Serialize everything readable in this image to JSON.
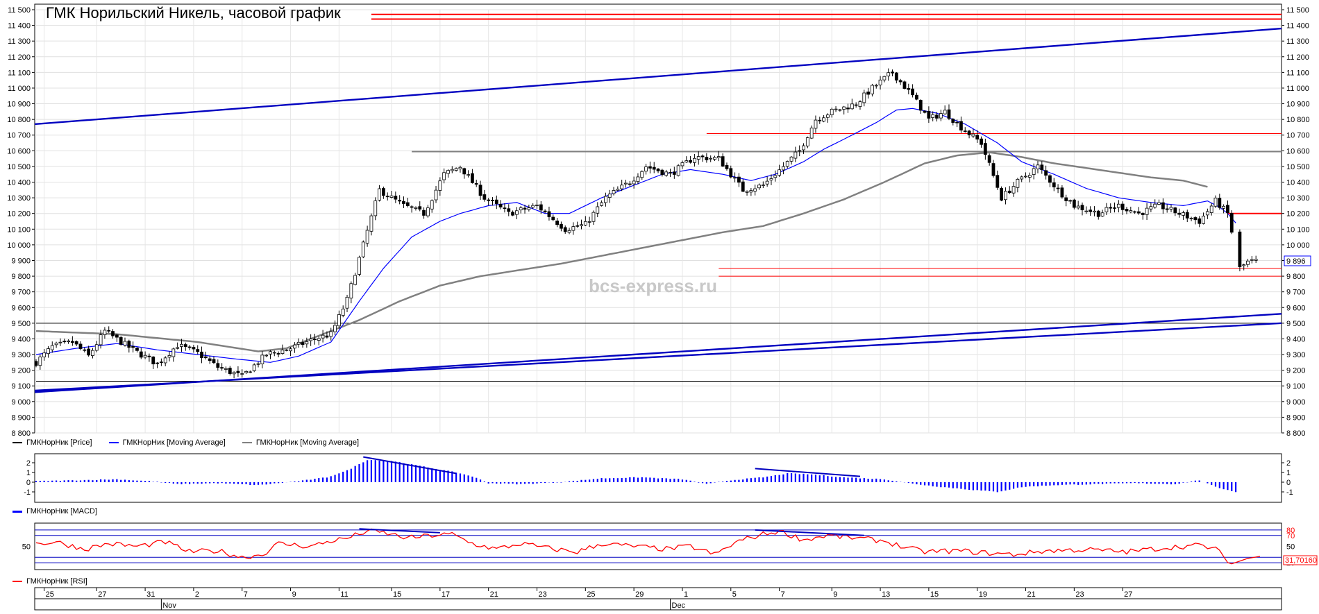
{
  "title": "ГМК Норильский Никель, часовой график",
  "watermark": "bcs-express.ru",
  "colors": {
    "price": "#000000",
    "ma_fast": "#0000ff",
    "ma_slow": "#808080",
    "level": "#ff0000",
    "trend": "#0000c0",
    "macd": "#0000ff",
    "rsi": "#ff0000"
  },
  "legend": {
    "price": "ГМКНорНик [Price]",
    "ma_fast": "ГМКНорНик [Moving Average]",
    "ma_slow": "ГМКНорНик [Moving Average]",
    "macd": "ГМКНорНик [MACD]",
    "rsi": "ГМКНорНик [RSI]"
  },
  "last_price_label": "9 896",
  "rsi_value_label": "31,70160",
  "chart_data": [
    {
      "type": "candlestick",
      "name": "price",
      "ylim": [
        8800,
        11500
      ],
      "yticks": [
        "11 500",
        "11 400",
        "11 300",
        "11 200",
        "11 100",
        "11 000",
        "10 900",
        "10 800",
        "10 700",
        "10 600",
        "10 500",
        "10 400",
        "10 300",
        "10 200",
        "10 100",
        "10 000",
        "9 900",
        "9 800",
        "9 700",
        "9 600",
        "9 500",
        "9 400",
        "9 300",
        "9 200",
        "9 100",
        "9 000",
        "8 900",
        "8 800"
      ],
      "price_anchors": [
        [
          0,
          9250
        ],
        [
          4,
          9350
        ],
        [
          9,
          9380
        ],
        [
          13,
          9290
        ],
        [
          17,
          9450
        ],
        [
          24,
          9330
        ],
        [
          30,
          9240
        ],
        [
          35,
          9360
        ],
        [
          40,
          9310
        ],
        [
          45,
          9220
        ],
        [
          51,
          9160
        ],
        [
          57,
          9300
        ],
        [
          63,
          9340
        ],
        [
          69,
          9400
        ],
        [
          73,
          9430
        ],
        [
          77,
          9650
        ],
        [
          81,
          10000
        ],
        [
          85,
          10350
        ],
        [
          91,
          10250
        ],
        [
          96,
          10200
        ],
        [
          101,
          10450
        ],
        [
          105,
          10500
        ],
        [
          111,
          10300
        ],
        [
          117,
          10200
        ],
        [
          124,
          10250
        ],
        [
          131,
          10100
        ],
        [
          136,
          10130
        ],
        [
          141,
          10300
        ],
        [
          147,
          10400
        ],
        [
          151,
          10500
        ],
        [
          157,
          10450
        ],
        [
          163,
          10560
        ],
        [
          169,
          10550
        ],
        [
          175,
          10350
        ],
        [
          180,
          10380
        ],
        [
          185,
          10500
        ],
        [
          189,
          10600
        ],
        [
          193,
          10800
        ],
        [
          197,
          10850
        ],
        [
          203,
          10900
        ],
        [
          207,
          11000
        ],
        [
          212,
          11100
        ],
        [
          217,
          10950
        ],
        [
          221,
          10800
        ],
        [
          225,
          10850
        ],
        [
          229,
          10750
        ],
        [
          234,
          10650
        ],
        [
          239,
          10300
        ],
        [
          243,
          10400
        ],
        [
          248,
          10500
        ],
        [
          253,
          10350
        ],
        [
          257,
          10250
        ],
        [
          263,
          10200
        ],
        [
          268,
          10250
        ],
        [
          273,
          10200
        ],
        [
          278,
          10250
        ],
        [
          283,
          10200
        ],
        [
          288,
          10150
        ],
        [
          292,
          10280
        ],
        [
          295,
          10200
        ],
        [
          298,
          9850
        ],
        [
          300,
          9890
        ],
        [
          302,
          9896
        ]
      ],
      "ma_fast_anchors": [
        [
          0,
          9300
        ],
        [
          10,
          9340
        ],
        [
          20,
          9370
        ],
        [
          30,
          9330
        ],
        [
          40,
          9300
        ],
        [
          50,
          9270
        ],
        [
          58,
          9250
        ],
        [
          65,
          9290
        ],
        [
          73,
          9380
        ],
        [
          80,
          9640
        ],
        [
          86,
          9850
        ],
        [
          93,
          10050
        ],
        [
          100,
          10150
        ],
        [
          105,
          10200
        ],
        [
          112,
          10250
        ],
        [
          119,
          10270
        ],
        [
          126,
          10200
        ],
        [
          132,
          10200
        ],
        [
          140,
          10300
        ],
        [
          148,
          10380
        ],
        [
          155,
          10450
        ],
        [
          162,
          10480
        ],
        [
          170,
          10450
        ],
        [
          177,
          10410
        ],
        [
          183,
          10450
        ],
        [
          190,
          10530
        ],
        [
          195,
          10610
        ],
        [
          202,
          10700
        ],
        [
          208,
          10780
        ],
        [
          213,
          10860
        ],
        [
          217,
          10870
        ],
        [
          223,
          10840
        ],
        [
          230,
          10770
        ],
        [
          238,
          10650
        ],
        [
          244,
          10530
        ],
        [
          252,
          10450
        ],
        [
          260,
          10360
        ],
        [
          268,
          10300
        ],
        [
          276,
          10270
        ],
        [
          284,
          10250
        ],
        [
          290,
          10280
        ],
        [
          293,
          10240
        ],
        [
          295,
          10200
        ],
        [
          297,
          10140
        ]
      ],
      "ma_slow_anchors": [
        [
          0,
          9450
        ],
        [
          20,
          9430
        ],
        [
          40,
          9380
        ],
        [
          55,
          9320
        ],
        [
          62,
          9340
        ],
        [
          70,
          9420
        ],
        [
          80,
          9520
        ],
        [
          90,
          9640
        ],
        [
          100,
          9740
        ],
        [
          110,
          9800
        ],
        [
          120,
          9840
        ],
        [
          130,
          9880
        ],
        [
          140,
          9930
        ],
        [
          150,
          9980
        ],
        [
          160,
          10030
        ],
        [
          170,
          10080
        ],
        [
          180,
          10120
        ],
        [
          190,
          10200
        ],
        [
          200,
          10290
        ],
        [
          210,
          10400
        ],
        [
          220,
          10520
        ],
        [
          228,
          10570
        ],
        [
          236,
          10590
        ],
        [
          244,
          10560
        ],
        [
          252,
          10520
        ],
        [
          260,
          10490
        ],
        [
          268,
          10460
        ],
        [
          276,
          10430
        ],
        [
          284,
          10410
        ],
        [
          290,
          10370
        ]
      ],
      "levels": [
        {
          "y": 11470,
          "x0": 83,
          "x1": 303,
          "color": "#ff0000",
          "width": 2
        },
        {
          "y": 11440,
          "x0": 83,
          "x1": 303,
          "color": "#ff0000",
          "width": 2
        },
        {
          "y": 10710,
          "x0": 166,
          "x1": 303,
          "color": "#ff0000",
          "width": 1
        },
        {
          "y": 10200,
          "x0": 295,
          "x1": 303,
          "color": "#ff0000",
          "width": 2
        },
        {
          "y": 9850,
          "x0": 169,
          "x1": 303,
          "color": "#ff0000",
          "width": 1
        },
        {
          "y": 9800,
          "x0": 169,
          "x1": 303,
          "color": "#ff0000",
          "width": 1
        },
        {
          "y": 10595,
          "x0": 93,
          "x1": 303,
          "color": "#808080",
          "width": 2
        },
        {
          "y": 9500,
          "x0": 0,
          "x1": 303,
          "color": "#000000",
          "width": 1
        },
        {
          "y": 9130,
          "x0": 0,
          "x1": 303,
          "color": "#000000",
          "width": 1
        }
      ],
      "trendlines": [
        {
          "x0": 0,
          "y0": 10770,
          "x1": 303,
          "y1": 11380
        },
        {
          "x0": 0,
          "y0": 9070,
          "x1": 303,
          "y1": 9500
        },
        {
          "x0": 0,
          "y0": 9060,
          "x1": 303,
          "y1": 9560
        }
      ]
    },
    {
      "type": "bar",
      "name": "MACD",
      "ylim": [
        -1.5,
        2.5
      ],
      "yticks": [
        "2",
        "1",
        "0",
        "-1"
      ],
      "macd_anchors": [
        [
          0,
          0.1
        ],
        [
          10,
          0.2
        ],
        [
          20,
          0.3
        ],
        [
          28,
          0.1
        ],
        [
          35,
          -0.2
        ],
        [
          45,
          -0.1
        ],
        [
          55,
          -0.3
        ],
        [
          65,
          0.1
        ],
        [
          72,
          0.5
        ],
        [
          77,
          1.2
        ],
        [
          82,
          2.3
        ],
        [
          88,
          2.2
        ],
        [
          96,
          1.6
        ],
        [
          104,
          1.0
        ],
        [
          108,
          0.6
        ],
        [
          112,
          -0.1
        ],
        [
          120,
          -0.2
        ],
        [
          130,
          0.0
        ],
        [
          140,
          0.4
        ],
        [
          150,
          0.5
        ],
        [
          160,
          0.3
        ],
        [
          166,
          -0.2
        ],
        [
          172,
          0.2
        ],
        [
          180,
          0.5
        ],
        [
          186,
          0.9
        ],
        [
          192,
          0.8
        ],
        [
          200,
          0.5
        ],
        [
          210,
          0.3
        ],
        [
          216,
          -0.1
        ],
        [
          222,
          -0.4
        ],
        [
          232,
          -0.8
        ],
        [
          238,
          -1.0
        ],
        [
          244,
          -0.5
        ],
        [
          252,
          -0.3
        ],
        [
          262,
          -0.2
        ],
        [
          272,
          -0.1
        ],
        [
          282,
          -0.2
        ],
        [
          288,
          0.2
        ],
        [
          292,
          -0.5
        ],
        [
          297,
          -1.0
        ]
      ],
      "divergences": [
        {
          "x0": 81,
          "y0": 2.6,
          "x1": 104,
          "y1": 0.9
        },
        {
          "x0": 178,
          "y0": 1.4,
          "x1": 204,
          "y1": 0.6
        }
      ]
    },
    {
      "type": "line",
      "name": "RSI",
      "ylim": [
        10,
        90
      ],
      "yticks": [
        "80",
        "70",
        "50",
        "20"
      ],
      "hlines": [
        80,
        70,
        30,
        20
      ],
      "rsi_anchors": [
        [
          0,
          55
        ],
        [
          5,
          58
        ],
        [
          12,
          45
        ],
        [
          18,
          55
        ],
        [
          25,
          50
        ],
        [
          32,
          58
        ],
        [
          38,
          40
        ],
        [
          45,
          42
        ],
        [
          51,
          30
        ],
        [
          56,
          35
        ],
        [
          60,
          55
        ],
        [
          68,
          50
        ],
        [
          73,
          60
        ],
        [
          77,
          65
        ],
        [
          82,
          78
        ],
        [
          86,
          75
        ],
        [
          92,
          65
        ],
        [
          98,
          70
        ],
        [
          103,
          72
        ],
        [
          108,
          55
        ],
        [
          114,
          45
        ],
        [
          120,
          55
        ],
        [
          128,
          45
        ],
        [
          134,
          40
        ],
        [
          140,
          55
        ],
        [
          148,
          50
        ],
        [
          156,
          45
        ],
        [
          162,
          50
        ],
        [
          168,
          35
        ],
        [
          174,
          60
        ],
        [
          180,
          72
        ],
        [
          184,
          78
        ],
        [
          190,
          62
        ],
        [
          196,
          70
        ],
        [
          203,
          65
        ],
        [
          210,
          60
        ],
        [
          215,
          48
        ],
        [
          220,
          40
        ],
        [
          228,
          42
        ],
        [
          235,
          38
        ],
        [
          242,
          35
        ],
        [
          250,
          42
        ],
        [
          260,
          44
        ],
        [
          270,
          40
        ],
        [
          280,
          48
        ],
        [
          288,
          52
        ],
        [
          292,
          45
        ],
        [
          296,
          18
        ],
        [
          300,
          28
        ],
        [
          303,
          31.7
        ]
      ],
      "divergences": [
        {
          "x0": 80,
          "y0": 82,
          "x1": 100,
          "y1": 75
        },
        {
          "x0": 178,
          "y0": 80,
          "x1": 205,
          "y1": 70
        }
      ]
    }
  ],
  "x_axis": {
    "day_labels": [
      {
        "x": 2,
        "t": "25"
      },
      {
        "x": 15,
        "t": "27"
      },
      {
        "x": 27,
        "t": "31"
      },
      {
        "x": 39,
        "t": "2"
      },
      {
        "x": 51,
        "t": "7"
      },
      {
        "x": 63,
        "t": "9"
      },
      {
        "x": 75,
        "t": "11"
      },
      {
        "x": 88,
        "t": "15"
      },
      {
        "x": 100,
        "t": "17"
      },
      {
        "x": 112,
        "t": "21"
      },
      {
        "x": 124,
        "t": "23"
      },
      {
        "x": 136,
        "t": "25"
      },
      {
        "x": 148,
        "t": "29"
      },
      {
        "x": 160,
        "t": "1"
      },
      {
        "x": 172,
        "t": "5"
      },
      {
        "x": 184,
        "t": "7"
      },
      {
        "x": 197,
        "t": "9"
      },
      {
        "x": 209,
        "t": "13"
      },
      {
        "x": 221,
        "t": "15"
      },
      {
        "x": 233,
        "t": "19"
      },
      {
        "x": 245,
        "t": "21"
      },
      {
        "x": 257,
        "t": "23"
      },
      {
        "x": 269,
        "t": "27"
      }
    ],
    "month_labels": [
      {
        "x": 31,
        "t": "Nov"
      },
      {
        "x": 157,
        "t": "Dec"
      }
    ]
  }
}
